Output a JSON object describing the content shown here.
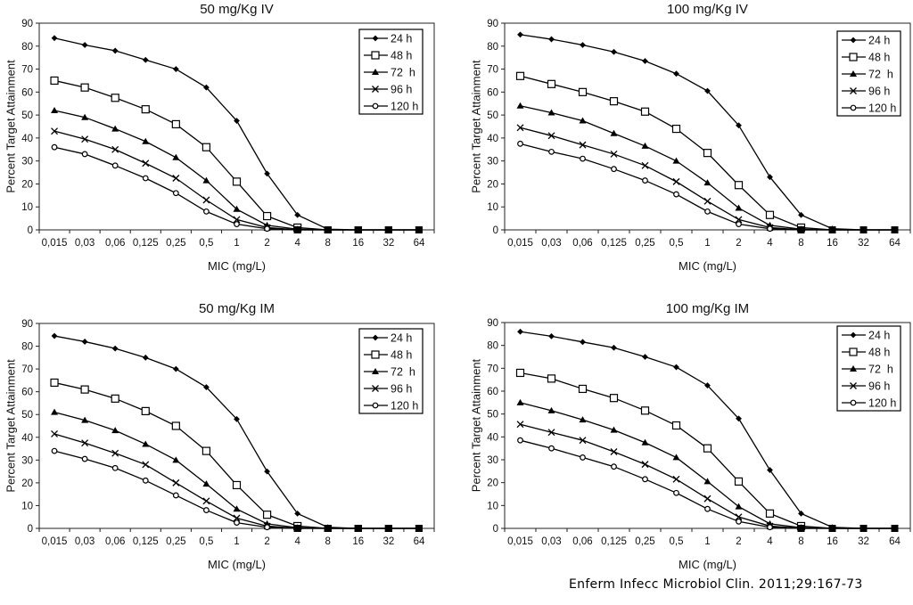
{
  "citation": "Enferm Infecc Microbiol Clin. 2011;29:167-73",
  "chart_data": [
    {
      "type": "line",
      "title": "50 mg/Kg IV",
      "xlabel": "MIC (mg/L)",
      "ylabel": "Percent Target Attainment",
      "categories": [
        "0,015",
        "0,03",
        "0,06",
        "0,125",
        "0,25",
        "0,5",
        "1",
        "2",
        "4",
        "8",
        "16",
        "32",
        "64"
      ],
      "ylim": [
        0,
        90
      ],
      "yticks": [
        "0",
        "10",
        "20",
        "30",
        "40",
        "50",
        "60",
        "70",
        "80",
        "90"
      ],
      "grid": false,
      "legend": "top-right",
      "series": [
        {
          "name": "24 h",
          "marker": "diamond-filled",
          "values": [
            83.5,
            80.5,
            78,
            74,
            70,
            62,
            47.5,
            24.5,
            6.5,
            0.3,
            0,
            0,
            0
          ]
        },
        {
          "name": "48 h",
          "marker": "square-open",
          "values": [
            65,
            62,
            57.5,
            52.5,
            46,
            36,
            21,
            6,
            1,
            0,
            0,
            0,
            0
          ]
        },
        {
          "name": "72  h",
          "marker": "triangle-filled",
          "values": [
            52,
            49,
            44,
            38.5,
            31.5,
            21.5,
            9,
            2,
            0.3,
            0,
            0,
            0,
            0
          ]
        },
        {
          "name": "96 h",
          "marker": "x",
          "values": [
            43,
            39.5,
            35,
            29,
            22.5,
            13,
            4.5,
            1,
            0,
            0,
            0,
            0,
            0
          ]
        },
        {
          "name": "120 h",
          "marker": "circle-open",
          "values": [
            36,
            33,
            28,
            22.5,
            16,
            8,
            2.5,
            0.5,
            0,
            0,
            0,
            0,
            0
          ]
        }
      ]
    },
    {
      "type": "line",
      "title": "100 mg/Kg IV",
      "xlabel": "MIC (mg/L)",
      "ylabel": "Percent Target Attainment",
      "categories": [
        "0,015",
        "0,03",
        "0,06",
        "0,125",
        "0,25",
        "0,5",
        "1",
        "2",
        "4",
        "8",
        "16",
        "32",
        "64"
      ],
      "ylim": [
        0,
        90
      ],
      "yticks": [
        "0",
        "10",
        "20",
        "30",
        "40",
        "50",
        "60",
        "70",
        "80",
        "90"
      ],
      "grid": false,
      "legend": "top-right",
      "series": [
        {
          "name": "24 h",
          "marker": "diamond-filled",
          "values": [
            85,
            83,
            80.5,
            77.5,
            73.5,
            68,
            60.5,
            45.5,
            23,
            6.5,
            0.5,
            0,
            0
          ]
        },
        {
          "name": "48 h",
          "marker": "square-open",
          "values": [
            67,
            63.5,
            60,
            56,
            51.5,
            44,
            33.5,
            19.5,
            6.5,
            1,
            0,
            0,
            0
          ]
        },
        {
          "name": "72  h",
          "marker": "triangle-filled",
          "values": [
            54,
            51,
            47.5,
            42,
            36.5,
            30,
            20.5,
            9.5,
            2,
            0.3,
            0,
            0,
            0
          ]
        },
        {
          "name": "96 h",
          "marker": "x",
          "values": [
            44.5,
            41,
            37,
            33,
            28,
            21,
            12.5,
            4.5,
            1,
            0,
            0,
            0,
            0
          ]
        },
        {
          "name": "120 h",
          "marker": "circle-open",
          "values": [
            37.5,
            34,
            31,
            26.5,
            21.5,
            15.5,
            8,
            2.5,
            0.5,
            0,
            0,
            0,
            0
          ]
        }
      ]
    },
    {
      "type": "line",
      "title": "50 mg/Kg IM",
      "xlabel": "MIC (mg/L)",
      "ylabel": "Percent Target Attainment",
      "categories": [
        "0,015",
        "0,03",
        "0,06",
        "0,125",
        "0,25",
        "0,5",
        "1",
        "2",
        "4",
        "8",
        "16",
        "32",
        "64"
      ],
      "ylim": [
        0,
        90
      ],
      "yticks": [
        "0",
        "10",
        "20",
        "30",
        "40",
        "50",
        "60",
        "70",
        "80",
        "90"
      ],
      "grid": false,
      "legend": "top-right",
      "series": [
        {
          "name": "24 h",
          "marker": "diamond-filled",
          "values": [
            84.5,
            82,
            79,
            75,
            70,
            62,
            48,
            25,
            6.5,
            0.5,
            0,
            0,
            0
          ]
        },
        {
          "name": "48 h",
          "marker": "square-open",
          "values": [
            64,
            61,
            57,
            51.5,
            45,
            34,
            19,
            6,
            1,
            0,
            0,
            0,
            0
          ]
        },
        {
          "name": "72  h",
          "marker": "triangle-filled",
          "values": [
            51,
            47.5,
            43,
            37,
            30,
            19.5,
            8.5,
            2,
            0.3,
            0,
            0,
            0,
            0
          ]
        },
        {
          "name": "96 h",
          "marker": "x",
          "values": [
            41.5,
            37.5,
            33,
            28,
            20,
            12,
            4.5,
            1,
            0,
            0,
            0,
            0,
            0
          ]
        },
        {
          "name": "120 h",
          "marker": "circle-open",
          "values": [
            34,
            30.5,
            26.5,
            21,
            14.5,
            8,
            2.5,
            0.5,
            0,
            0,
            0,
            0,
            0
          ]
        }
      ]
    },
    {
      "type": "line",
      "title": "100 mg/Kg IM",
      "xlabel": "MIC (mg/L)",
      "ylabel": "Percent Target Attainment",
      "categories": [
        "0,015",
        "0,03",
        "0,06",
        "0,125",
        "0,25",
        "0,5",
        "1",
        "2",
        "4",
        "8",
        "16",
        "32",
        "64"
      ],
      "ylim": [
        0,
        90
      ],
      "yticks": [
        "0",
        "10",
        "20",
        "30",
        "40",
        "50",
        "60",
        "70",
        "80",
        "90"
      ],
      "grid": false,
      "legend": "top-right",
      "series": [
        {
          "name": "24 h",
          "marker": "diamond-filled",
          "values": [
            86,
            84,
            81.5,
            79,
            75,
            70.5,
            62.5,
            48,
            25.5,
            6.5,
            0.5,
            0,
            0
          ]
        },
        {
          "name": "48 h",
          "marker": "square-open",
          "values": [
            68,
            65.5,
            61,
            57,
            51.5,
            45,
            35,
            20.5,
            6.5,
            1,
            0,
            0,
            0
          ]
        },
        {
          "name": "72  h",
          "marker": "triangle-filled",
          "values": [
            55,
            51.5,
            47.5,
            43,
            37.5,
            31,
            20.5,
            9.5,
            2,
            0.3,
            0,
            0,
            0
          ]
        },
        {
          "name": "96 h",
          "marker": "x",
          "values": [
            45.5,
            42,
            38.5,
            33.5,
            28,
            21.5,
            13,
            5,
            1,
            0,
            0,
            0,
            0
          ]
        },
        {
          "name": "120 h",
          "marker": "circle-open",
          "values": [
            38.5,
            35,
            31,
            27,
            21.5,
            15.5,
            8.5,
            3,
            0.5,
            0,
            0,
            0,
            0
          ]
        }
      ]
    }
  ]
}
